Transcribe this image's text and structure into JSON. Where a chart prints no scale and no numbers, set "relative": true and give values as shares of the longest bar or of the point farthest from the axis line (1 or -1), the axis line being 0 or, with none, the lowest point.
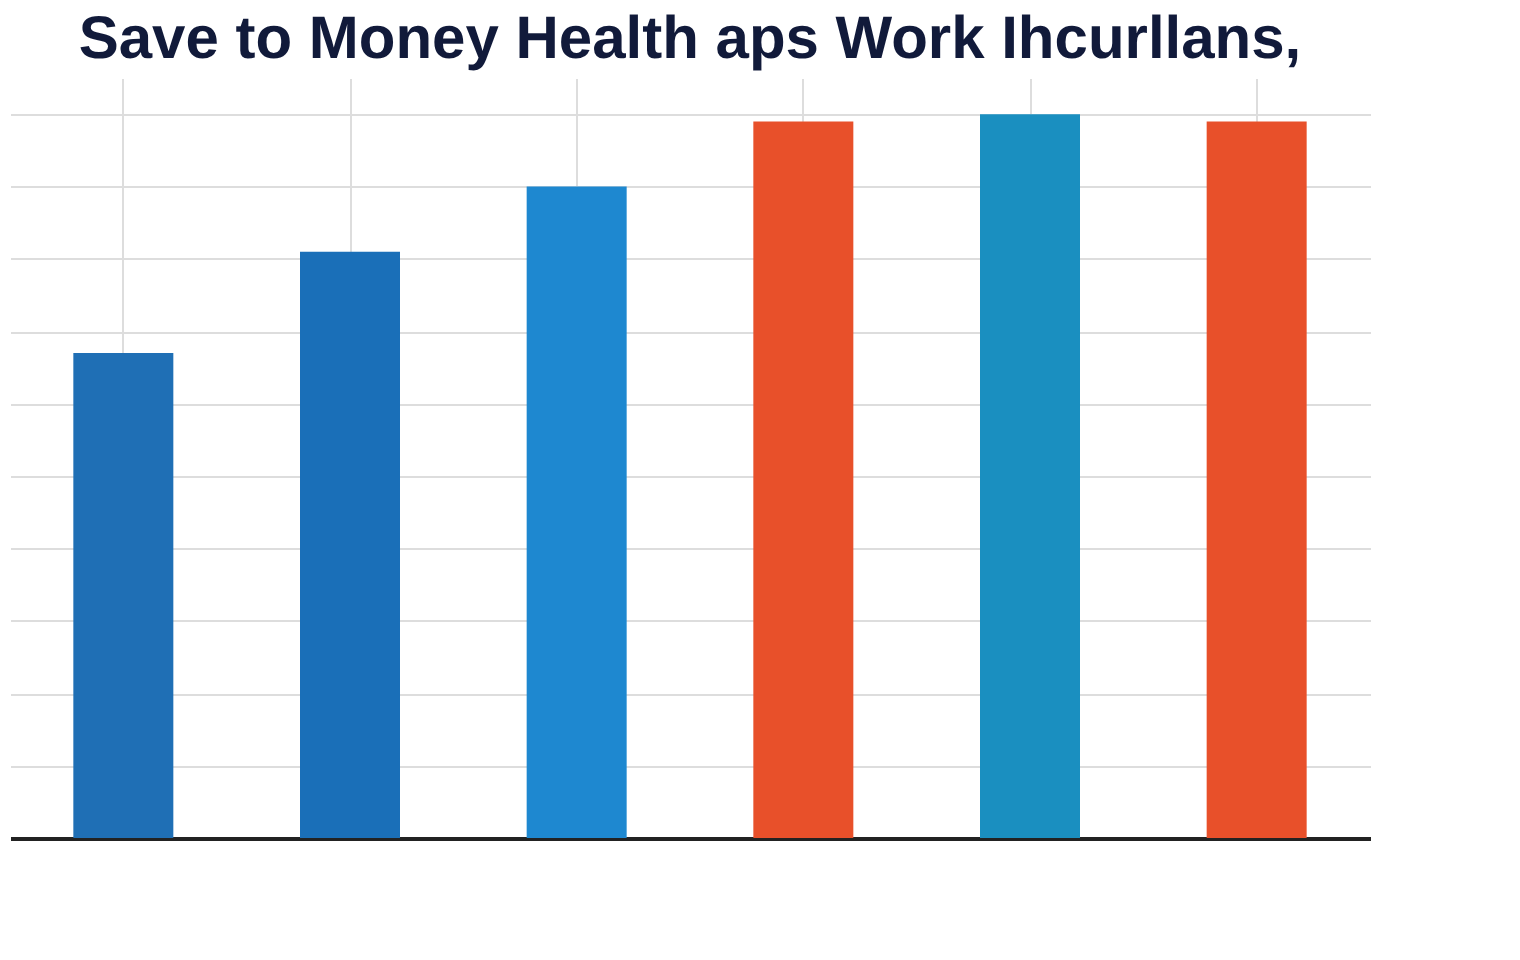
{
  "chart_data": {
    "type": "bar",
    "title": "Save to Money Health aps Work Ihcurllans,",
    "relative": true,
    "categories": [
      null,
      null,
      null,
      null,
      null,
      null
    ],
    "values": [
      0.67,
      0.81,
      0.9,
      0.99,
      1,
      0.99
    ],
    "colors": [
      "#1f6fb5",
      "#1a6fb8",
      "#1e88d0",
      "#e8502a",
      "#1a8fc0",
      "#e8502a"
    ],
    "grid": true
  }
}
